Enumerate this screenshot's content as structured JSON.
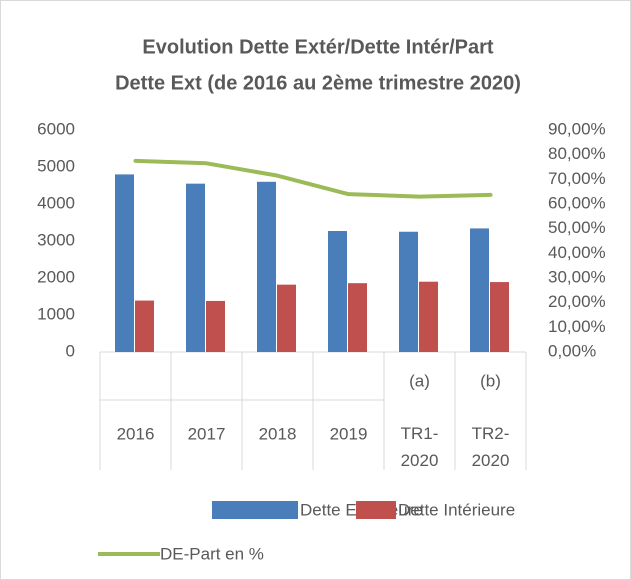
{
  "chart_data": {
    "type": "bar",
    "title": [
      "Evolution Dette Extér/Dette Intér/Part",
      "Dette Ext (de 2016 au 2ème trimestre 2020)"
    ],
    "categories": [
      "2016",
      "2017",
      "2018",
      "2019",
      "TR1-2020",
      "TR2-2020"
    ],
    "category_notes": [
      null,
      null,
      null,
      null,
      "(a)",
      "(b)"
    ],
    "series": [
      {
        "name": "Dette Extérieure",
        "color": "#4a7ebb",
        "type": "bar",
        "values": [
          4800,
          4550,
          4600,
          3270,
          3250,
          3340
        ]
      },
      {
        "name": "Dette Intérieure",
        "color": "#c0504d",
        "type": "bar",
        "values": [
          1390,
          1380,
          1820,
          1860,
          1900,
          1890
        ]
      },
      {
        "name": "DE-Part en %",
        "color": "#9bbb59",
        "type": "line",
        "axis": "y2",
        "values": [
          77.5,
          76.5,
          71.5,
          64,
          63,
          63.7
        ]
      }
    ],
    "ylim": [
      0,
      6000
    ],
    "yticks": [
      0,
      1000,
      2000,
      3000,
      4000,
      5000,
      6000
    ],
    "y2lim": [
      0,
      90
    ],
    "y2ticks": [
      {
        "value": 0,
        "label": "0,00%"
      },
      {
        "value": 10,
        "label": "10,00%"
      },
      {
        "value": 20,
        "label": "20,00%"
      },
      {
        "value": 30,
        "label": "30,00%"
      },
      {
        "value": 40,
        "label": "40,00%"
      },
      {
        "value": 50,
        "label": "50,00%"
      },
      {
        "value": 60,
        "label": "60,00%"
      },
      {
        "value": 70,
        "label": "70,00%"
      },
      {
        "value": 80,
        "label": "80,00%"
      },
      {
        "value": 90,
        "label": "90,00%"
      }
    ],
    "grid": false,
    "legend": "bottom"
  }
}
